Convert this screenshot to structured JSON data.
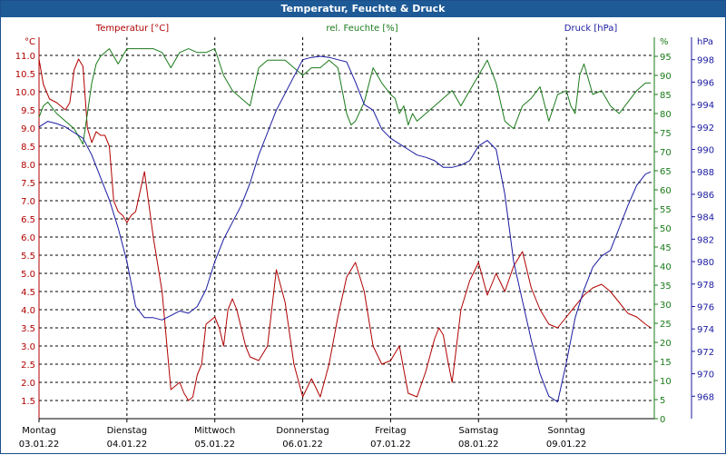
{
  "title": "Temperatur, Feuchte & Druck",
  "colors": {
    "title_bg": "#1d5a96",
    "temperature": "#b00000",
    "humidity": "#1a7a1a",
    "pressure": "#1a1aa0",
    "grid": "#000000"
  },
  "chart_data": {
    "type": "line",
    "grid": true,
    "axes": {
      "temperature": {
        "label": "Temperatur [°C]",
        "unit": "°C",
        "side": "left",
        "range": [
          1.0,
          11.5
        ],
        "ticks": [
          "11.0",
          "10.5",
          "10.0",
          "9.5",
          "9.0",
          "8.5",
          "8.0",
          "7.5",
          "7.0",
          "6.5",
          "6.0",
          "5.5",
          "5.0",
          "4.5",
          "4.0",
          "3.5",
          "3.0",
          "2.5",
          "2.0",
          "1.5"
        ]
      },
      "humidity": {
        "label": "rel. Feuchte [%]",
        "unit": "%",
        "side": "right-inner",
        "range": [
          0,
          100
        ],
        "ticks": [
          "95",
          "90",
          "85",
          "80",
          "75",
          "70",
          "65",
          "60",
          "55",
          "50",
          "45",
          "40",
          "35",
          "30",
          "25",
          "20",
          "15",
          "10",
          "5",
          "0"
        ]
      },
      "pressure": {
        "label": "Druck [hPa]",
        "unit": "hPa",
        "side": "right-outer",
        "range": [
          966,
          1000
        ],
        "ticks": [
          "998",
          "996",
          "994",
          "992",
          "990",
          "988",
          "986",
          "984",
          "982",
          "980",
          "978",
          "976",
          "974",
          "972",
          "970",
          "968"
        ]
      }
    },
    "x_labels": [
      {
        "day": "Montag",
        "date": "03.01.22"
      },
      {
        "day": "Dienstag",
        "date": "04.01.22"
      },
      {
        "day": "Mittwoch",
        "date": "05.01.22"
      },
      {
        "day": "Donnerstag",
        "date": "06.01.22"
      },
      {
        "day": "Freitag",
        "date": "07.01.22"
      },
      {
        "day": "Samstag",
        "date": "08.01.22"
      },
      {
        "day": "Sonntag",
        "date": "09.01.22"
      }
    ],
    "x_range": [
      0,
      7
    ],
    "series": [
      {
        "name": "Temperatur [°C]",
        "axis": "temperature",
        "x": [
          0,
          0.05,
          0.12,
          0.2,
          0.3,
          0.35,
          0.4,
          0.45,
          0.5,
          0.55,
          0.6,
          0.65,
          0.7,
          0.75,
          0.8,
          0.85,
          0.9,
          0.95,
          1.0,
          1.05,
          1.1,
          1.2,
          1.3,
          1.4,
          1.5,
          1.6,
          1.65,
          1.7,
          1.75,
          1.8,
          1.85,
          1.9,
          2.0,
          2.05,
          2.1,
          2.15,
          2.2,
          2.25,
          2.3,
          2.35,
          2.4,
          2.5,
          2.6,
          2.7,
          2.8,
          2.9,
          3.0,
          3.1,
          3.2,
          3.3,
          3.4,
          3.5,
          3.6,
          3.7,
          3.8,
          3.9,
          4.0,
          4.1,
          4.2,
          4.3,
          4.4,
          4.5,
          4.55,
          4.6,
          4.65,
          4.7,
          4.8,
          4.9,
          5.0,
          5.1,
          5.2,
          5.3,
          5.4,
          5.5,
          5.6,
          5.7,
          5.8,
          5.9,
          6.0,
          6.1,
          6.2,
          6.3,
          6.4,
          6.5,
          6.6,
          6.7,
          6.8,
          6.9,
          6.96
        ],
        "y": [
          10.9,
          10.2,
          9.8,
          9.7,
          9.5,
          9.7,
          10.6,
          10.9,
          10.7,
          9.0,
          8.6,
          8.9,
          8.8,
          8.8,
          8.5,
          7.0,
          6.7,
          6.6,
          6.4,
          6.6,
          6.7,
          7.8,
          6.0,
          4.5,
          1.8,
          2.0,
          1.7,
          1.5,
          1.6,
          2.2,
          2.5,
          3.6,
          3.8,
          3.5,
          3.0,
          4.0,
          4.3,
          4.0,
          3.5,
          3.0,
          2.7,
          2.6,
          3.0,
          5.1,
          4.2,
          2.5,
          1.6,
          2.1,
          1.6,
          2.5,
          3.8,
          4.9,
          5.3,
          4.5,
          3.0,
          2.5,
          2.6,
          3.0,
          1.7,
          1.6,
          2.3,
          3.2,
          3.5,
          3.3,
          2.6,
          2.0,
          4.0,
          4.8,
          5.3,
          4.4,
          5.0,
          4.5,
          5.2,
          5.6,
          4.6,
          4.0,
          3.6,
          3.5,
          3.8,
          4.1,
          4.4,
          4.6,
          4.7,
          4.5,
          4.2,
          3.9,
          3.8,
          3.6,
          3.5
        ]
      },
      {
        "name": "rel. Feuchte [%]",
        "axis": "humidity",
        "x": [
          0,
          0.05,
          0.1,
          0.2,
          0.3,
          0.4,
          0.5,
          0.55,
          0.6,
          0.65,
          0.7,
          0.8,
          0.9,
          1.0,
          1.1,
          1.2,
          1.3,
          1.4,
          1.5,
          1.6,
          1.7,
          1.8,
          1.9,
          2.0,
          2.1,
          2.2,
          2.3,
          2.4,
          2.5,
          2.6,
          2.7,
          2.8,
          2.9,
          3.0,
          3.1,
          3.2,
          3.3,
          3.4,
          3.5,
          3.55,
          3.6,
          3.7,
          3.8,
          3.9,
          4.0,
          4.05,
          4.1,
          4.15,
          4.2,
          4.25,
          4.3,
          4.4,
          4.5,
          4.6,
          4.7,
          4.8,
          4.9,
          5.0,
          5.1,
          5.2,
          5.3,
          5.4,
          5.5,
          5.6,
          5.7,
          5.8,
          5.9,
          6.0,
          6.05,
          6.1,
          6.15,
          6.2,
          6.3,
          6.4,
          6.5,
          6.6,
          6.7,
          6.8,
          6.9,
          6.96
        ],
        "y": [
          79,
          82,
          83,
          80,
          78,
          76,
          72,
          80,
          88,
          93,
          95,
          97,
          93,
          97,
          97,
          97,
          97,
          96,
          92,
          96,
          97,
          96,
          96,
          97,
          90,
          86,
          84,
          82,
          92,
          94,
          94,
          94,
          92,
          90,
          92,
          92,
          94,
          92,
          80,
          77,
          78,
          83,
          92,
          88,
          85,
          84,
          80,
          82,
          77,
          80,
          78,
          80,
          82,
          84,
          86,
          82,
          86,
          90,
          94,
          88,
          78,
          76,
          82,
          84,
          87,
          78,
          85,
          86,
          82,
          80,
          90,
          93,
          85,
          86,
          82,
          80,
          83,
          86,
          88,
          88
        ]
      },
      {
        "name": "Druck [hPa]",
        "axis": "pressure",
        "x": [
          0,
          0.1,
          0.2,
          0.3,
          0.4,
          0.5,
          0.6,
          0.7,
          0.8,
          0.9,
          1.0,
          1.1,
          1.2,
          1.3,
          1.4,
          1.5,
          1.6,
          1.7,
          1.8,
          1.9,
          2.0,
          2.1,
          2.2,
          2.3,
          2.4,
          2.5,
          2.6,
          2.7,
          2.8,
          2.9,
          3.0,
          3.1,
          3.2,
          3.3,
          3.4,
          3.5,
          3.6,
          3.7,
          3.8,
          3.9,
          4.0,
          4.1,
          4.2,
          4.3,
          4.4,
          4.5,
          4.6,
          4.7,
          4.8,
          4.9,
          5.0,
          5.1,
          5.2,
          5.3,
          5.4,
          5.5,
          5.6,
          5.7,
          5.8,
          5.9,
          6.0,
          6.1,
          6.2,
          6.3,
          6.4,
          6.5,
          6.6,
          6.7,
          6.8,
          6.9,
          6.96
        ],
        "y": [
          992,
          992.5,
          992.3,
          992,
          991.5,
          991,
          989.5,
          987.5,
          985.5,
          983,
          980,
          976,
          975,
          975,
          974.8,
          975.2,
          975.6,
          975.4,
          976,
          977.5,
          980,
          982,
          983.5,
          985,
          987,
          989.5,
          991.5,
          993.5,
          995,
          996.5,
          998,
          998.2,
          998.3,
          998.2,
          998,
          997.8,
          996,
          994,
          993.5,
          991.8,
          991,
          990.5,
          990,
          989.5,
          989.3,
          989,
          988.4,
          988.4,
          988.6,
          989,
          990.3,
          990.8,
          990,
          986,
          980,
          976.5,
          973,
          970,
          968,
          967.5,
          971,
          975,
          977.5,
          979.5,
          980.5,
          981,
          983,
          985,
          986.8,
          987.8,
          988
        ]
      }
    ]
  }
}
